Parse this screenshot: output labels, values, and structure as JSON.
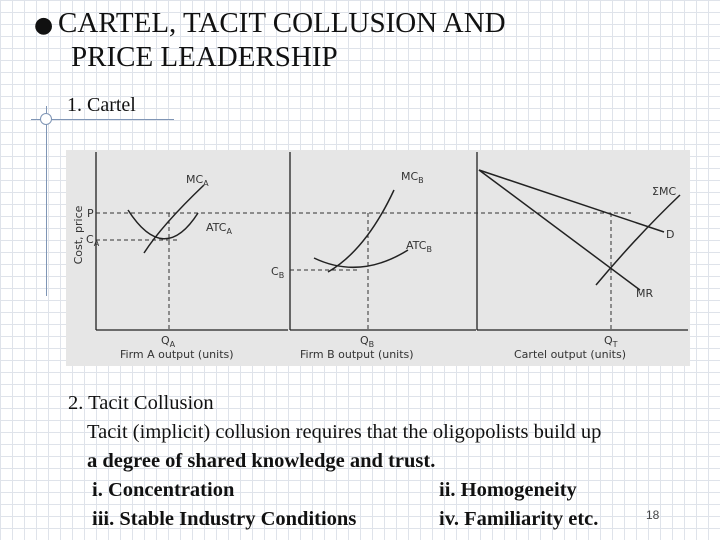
{
  "slide": {
    "title_line1": "CARTEL, TACIT COLLUSION AND",
    "title_line2": "PRICE LEADERSHIP",
    "bullet": "●",
    "subhead": "1. Cartel",
    "page_number": "18"
  },
  "figure": {
    "y_axis_label": "Cost, price",
    "panels": [
      {
        "x_axis_label": "Firm A output (units)",
        "curves": {
          "mc": "MC",
          "mc_sub": "A",
          "atc": "ATC",
          "atc_sub": "A"
        },
        "ticks": {
          "p": "P",
          "c": "C",
          "c_sub": "A",
          "q": "Q",
          "q_sub": "A"
        }
      },
      {
        "x_axis_label": "Firm B output (units)",
        "curves": {
          "mc": "MC",
          "mc_sub": "B",
          "atc": "ATC",
          "atc_sub": "B"
        },
        "ticks": {
          "c": "C",
          "c_sub": "B",
          "q": "Q",
          "q_sub": "B"
        }
      },
      {
        "x_axis_label": "Cartel output (units)",
        "curves": {
          "smc": "ΣMC",
          "d": "D",
          "mr": "MR"
        },
        "ticks": {
          "q": "Q",
          "q_sub": "T"
        }
      }
    ]
  },
  "section2": {
    "heading": "2. Tacit Collusion",
    "line1": "Tacit (implicit) collusion requires that the oligopolists build up",
    "line2": "a degree of shared knowledge and trust.",
    "items": [
      {
        "left": "i. Concentration",
        "right": "ii. Homogeneity"
      },
      {
        "left": "iii. Stable Industry Conditions",
        "right": "iv. Familiarity etc."
      }
    ]
  },
  "colors": {
    "accent": "#7f95b5",
    "figure_bg": "#e6e6e6",
    "grid": "#dfe3ea"
  }
}
